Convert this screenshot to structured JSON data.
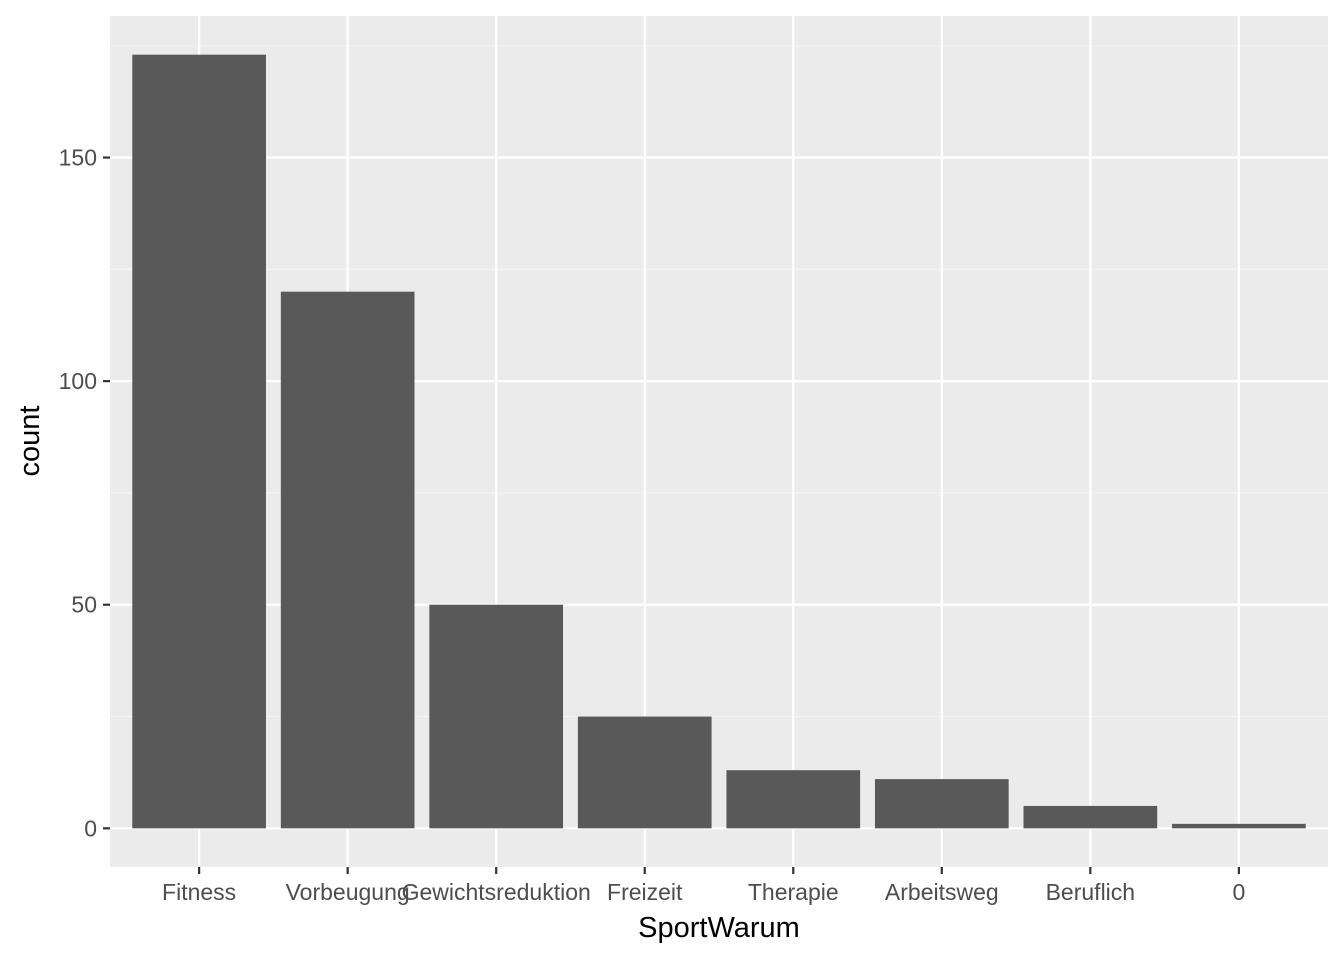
{
  "chart_data": {
    "type": "bar",
    "xlabel": "SportWarum",
    "ylabel": "count",
    "categories": [
      "Fitness",
      "Vorbeugung",
      "Gewichtsreduktion",
      "Freizeit",
      "Therapie",
      "Arbeitsweg",
      "Beruflich",
      "0"
    ],
    "values": [
      173,
      120,
      50,
      25,
      13,
      11,
      5,
      1
    ],
    "ylim": [
      -8.65,
      181.65
    ],
    "yticks": [
      0,
      50,
      100,
      150
    ],
    "ytick_labels": [
      "0",
      "50",
      "100",
      "150"
    ],
    "grid": true,
    "legend": "none",
    "colors": {
      "panel_background": "#ebebeb",
      "grid_major": "#ffffff",
      "grid_minor": "#f5f5f5",
      "bar_fill": "#595959",
      "axis_ticks": "#333333",
      "tick_text": "#4d4d4d",
      "title_text": "#000000"
    }
  }
}
